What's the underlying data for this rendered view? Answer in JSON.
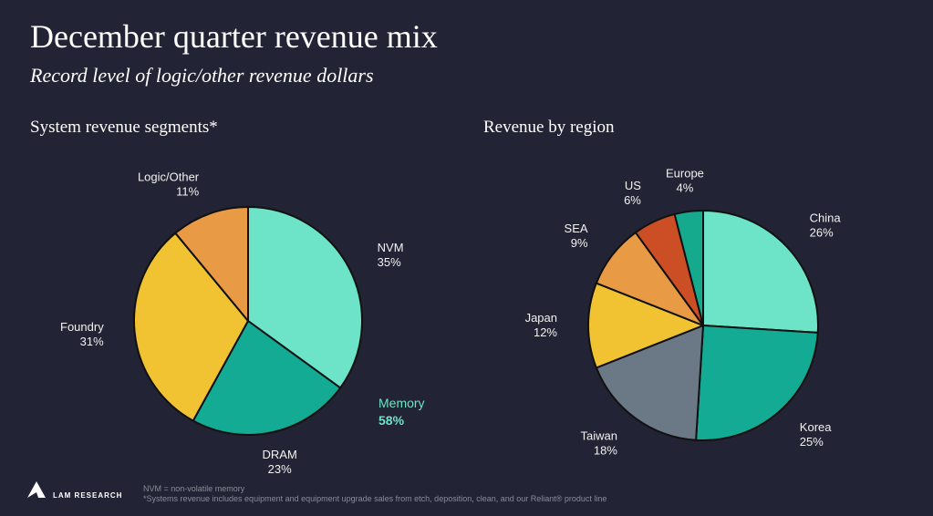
{
  "title": "December quarter revenue mix",
  "subtitle": "Record level of logic/other revenue dollars",
  "logo": "LAM RESEARCH",
  "footnotes": [
    "NVM = non-volatile memory",
    "*Systems revenue includes equipment and equipment upgrade sales from etch, deposition, clean, and our Reliant® product line"
  ],
  "chart_data": [
    {
      "type": "pie",
      "title": "System revenue segments*",
      "categories": [
        "NVM",
        "DRAM",
        "Foundry",
        "Logic/Other"
      ],
      "values": [
        35,
        23,
        31,
        11
      ],
      "value_labels": [
        "35%",
        "23%",
        "31%",
        "11%"
      ],
      "colors": [
        "#6de3c8",
        "#13ab93",
        "#f1c232",
        "#e99a45"
      ],
      "annotation": {
        "label": "Memory",
        "value": "58%"
      }
    },
    {
      "type": "pie",
      "title": "Revenue by region",
      "categories": [
        "China",
        "Korea",
        "Taiwan",
        "Japan",
        "SEA",
        "US",
        "Europe"
      ],
      "values": [
        26,
        25,
        18,
        12,
        9,
        6,
        4
      ],
      "value_labels": [
        "26%",
        "25%",
        "18%",
        "12%",
        "9%",
        "6%",
        "4%"
      ],
      "colors": [
        "#6de3c8",
        "#13ab93",
        "#6b7986",
        "#f1c232",
        "#e99a45",
        "#cc4e24",
        "#15a98e"
      ]
    }
  ]
}
